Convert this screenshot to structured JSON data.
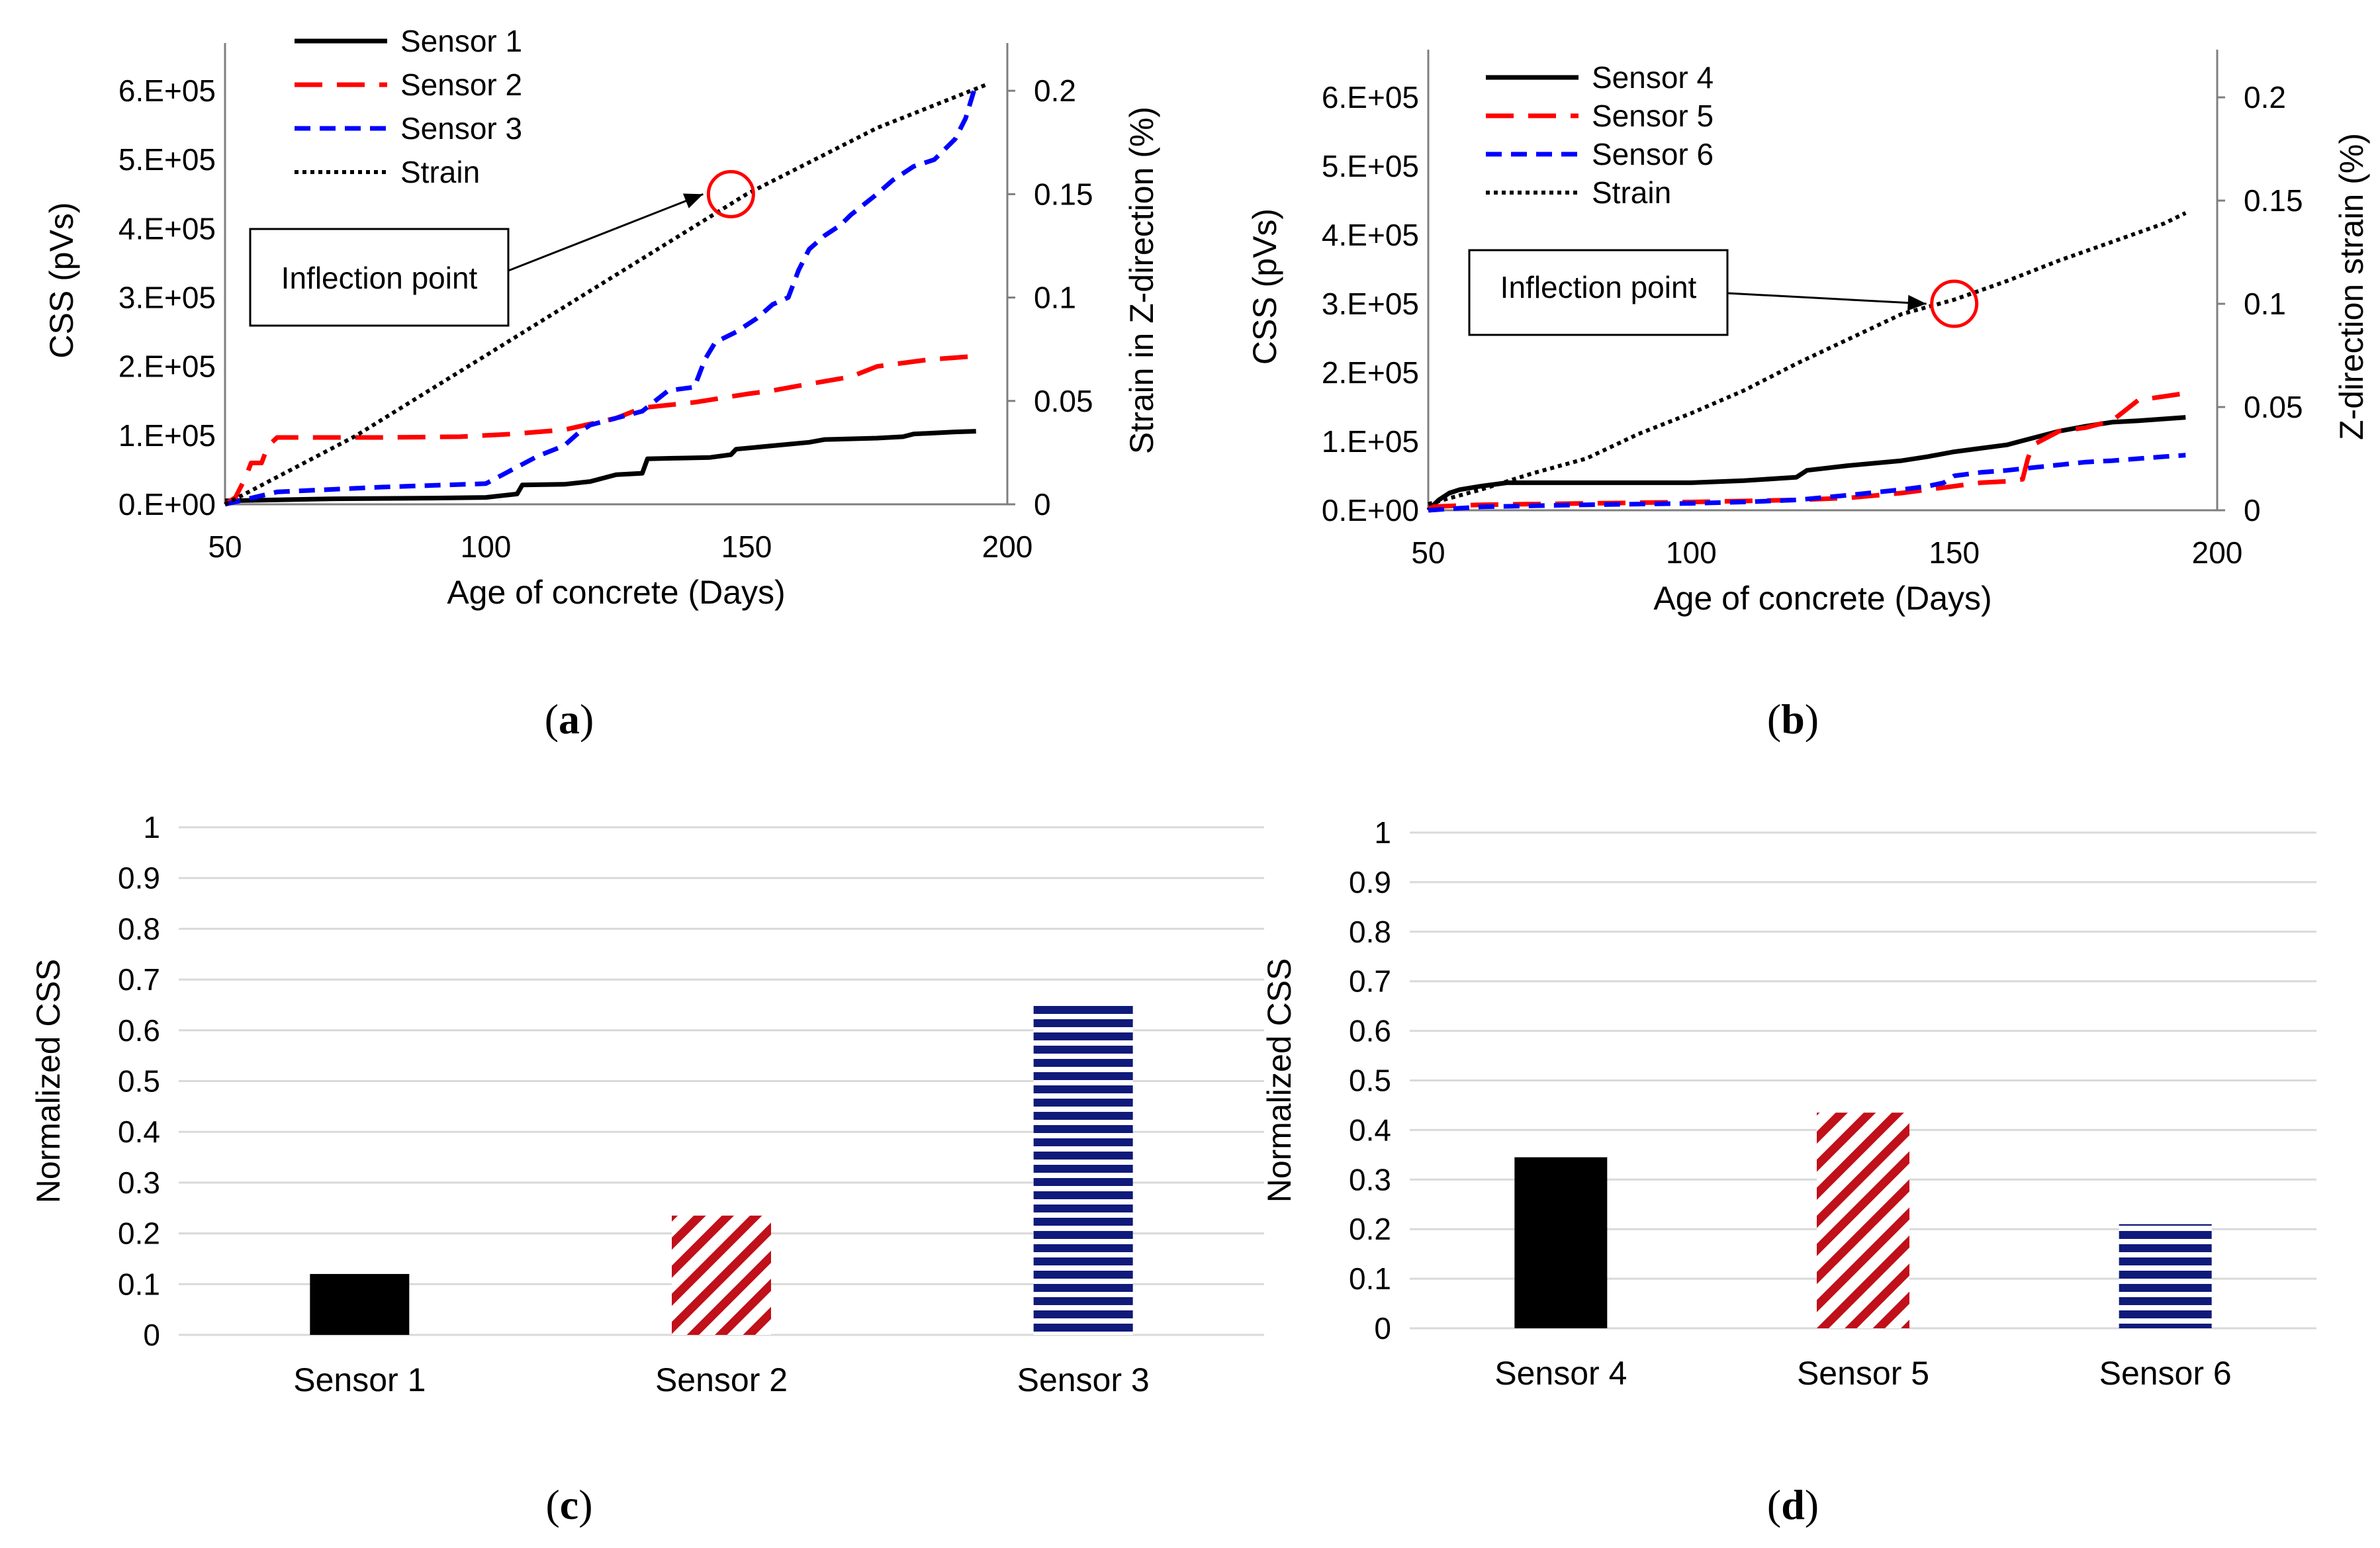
{
  "colors": {
    "sensor_solid": "#000000",
    "sensor_red": "#ff0000",
    "sensor_blue": "#0000ff",
    "strain": "#000000",
    "grid": "#d9d9d9",
    "axis": "#7f7f7f",
    "bar_black": "#000000",
    "bar_red": "#c0101a",
    "bar_navy": "#0f1a7a"
  },
  "chart_data": [
    {
      "id": "a",
      "type": "line",
      "panel_label": "a",
      "xlabel": "Age of concrete (Days)",
      "ylabel": "CSS (pVs)",
      "y2label": "Strain in Z-direction (%)",
      "xlim": [
        50,
        200
      ],
      "ylim": [
        0,
        650000
      ],
      "y2lim": [
        0,
        0.2167
      ],
      "x_ticks": [
        "50",
        "100",
        "150",
        "200"
      ],
      "y_ticks": [
        "0.E+00",
        "1.E+05",
        "2.E+05",
        "3.E+05",
        "4.E+05",
        "5.E+05",
        "6.E+05"
      ],
      "y2_ticks": [
        "0",
        "0.05",
        "0.1",
        "0.15",
        "0.2"
      ],
      "legend_position": "top-left",
      "series": [
        {
          "name": "Sensor 1",
          "style": "solid",
          "axis": "left",
          "x": [
            50,
            70,
            90,
            100,
            106,
            107,
            115,
            120,
            125,
            130,
            131,
            137,
            143,
            147,
            148,
            155,
            162,
            165,
            175,
            180,
            182,
            190,
            194
          ],
          "y": [
            5000,
            8000,
            9000,
            10000,
            15000,
            28000,
            29000,
            33000,
            43000,
            45000,
            66000,
            67000,
            68000,
            72000,
            80000,
            85000,
            90000,
            94000,
            96000,
            98000,
            102000,
            105000,
            106000
          ]
        },
        {
          "name": "Sensor 2",
          "style": "dashed",
          "axis": "left",
          "x": [
            50,
            52,
            54,
            55,
            57,
            58,
            59,
            60,
            65,
            80,
            95,
            105,
            115,
            125,
            130,
            140,
            150,
            155,
            160,
            170,
            175,
            185,
            194
          ],
          "y": [
            0,
            10000,
            40000,
            60000,
            60000,
            80000,
            90000,
            97000,
            97000,
            97000,
            98000,
            102000,
            108000,
            125000,
            140000,
            148000,
            160000,
            165000,
            172000,
            185000,
            200000,
            210000,
            215000
          ]
        },
        {
          "name": "Sensor 3",
          "style": "dotted-dash",
          "axis": "left",
          "x": [
            50,
            60,
            80,
            100,
            105,
            110,
            115,
            118,
            120,
            125,
            130,
            135,
            140,
            142,
            144,
            148,
            152,
            155,
            158,
            160,
            162,
            165,
            168,
            170,
            175,
            178,
            182,
            186,
            190,
            192,
            194
          ],
          "y": [
            0,
            18000,
            25000,
            30000,
            50000,
            70000,
            85000,
            105000,
            115000,
            125000,
            135000,
            165000,
            170000,
            210000,
            235000,
            250000,
            270000,
            290000,
            300000,
            340000,
            370000,
            390000,
            405000,
            420000,
            450000,
            470000,
            490000,
            500000,
            530000,
            560000,
            610000
          ]
        },
        {
          "name": "Strain",
          "style": "dotted",
          "axis": "right",
          "x": [
            50,
            75,
            100,
            125,
            150,
            175,
            196
          ],
          "y": [
            0,
            0.033,
            0.072,
            0.111,
            0.15,
            0.182,
            0.203
          ]
        }
      ],
      "annotations": [
        {
          "text": "Inflection point",
          "x": 147,
          "y2": 0.15
        }
      ]
    },
    {
      "id": "b",
      "type": "line",
      "panel_label": "b",
      "xlabel": "Age of concrete (Days)",
      "ylabel": "CSS (pVs)",
      "y2label": "Z-direction strain (%)",
      "xlim": [
        50,
        200
      ],
      "ylim": [
        0,
        650000
      ],
      "y2lim": [
        0,
        0.2167
      ],
      "x_ticks": [
        "50",
        "100",
        "150",
        "200"
      ],
      "y_ticks": [
        "0.E+00",
        "1.E+05",
        "2.E+05",
        "3.E+05",
        "4.E+05",
        "5.E+05",
        "6.E+05"
      ],
      "y2_ticks": [
        "0",
        "0.05",
        "0.1",
        "0.15",
        "0.2"
      ],
      "legend_position": "top-left",
      "series": [
        {
          "name": "Sensor 4",
          "style": "solid",
          "axis": "left",
          "x": [
            50,
            52,
            54,
            56,
            60,
            65,
            80,
            100,
            110,
            120,
            122,
            130,
            140,
            145,
            150,
            155,
            160,
            165,
            170,
            175,
            180,
            185,
            194
          ],
          "y": [
            0,
            15000,
            25000,
            30000,
            35000,
            40000,
            40000,
            40000,
            43000,
            48000,
            58000,
            65000,
            72000,
            78000,
            85000,
            90000,
            95000,
            105000,
            115000,
            122000,
            128000,
            130000,
            135000
          ]
        },
        {
          "name": "Sensor 5",
          "style": "dashed",
          "axis": "left",
          "x": [
            50,
            60,
            80,
            100,
            120,
            130,
            140,
            145,
            150,
            155,
            160,
            163,
            164,
            165,
            170,
            175,
            180,
            185,
            194
          ],
          "y": [
            5000,
            8000,
            10000,
            12000,
            15000,
            18000,
            25000,
            30000,
            35000,
            40000,
            42000,
            45000,
            75000,
            95000,
            115000,
            120000,
            130000,
            160000,
            170000
          ]
        },
        {
          "name": "Sensor 6",
          "style": "dotted-dash",
          "axis": "left",
          "x": [
            50,
            60,
            80,
            100,
            110,
            120,
            130,
            140,
            145,
            148,
            150,
            155,
            160,
            165,
            170,
            175,
            180,
            185,
            190,
            194
          ],
          "y": [
            0,
            5000,
            8000,
            10000,
            12000,
            15000,
            22000,
            30000,
            35000,
            40000,
            50000,
            55000,
            58000,
            62000,
            66000,
            70000,
            72000,
            75000,
            78000,
            80000
          ]
        },
        {
          "name": "Strain",
          "style": "dotted",
          "axis": "right",
          "x": [
            50,
            60,
            70,
            80,
            90,
            100,
            110,
            120,
            130,
            140,
            150,
            160,
            170,
            180,
            190,
            194
          ],
          "y": [
            0.003,
            0.01,
            0.018,
            0.025,
            0.037,
            0.047,
            0.058,
            0.071,
            0.083,
            0.095,
            0.102,
            0.111,
            0.121,
            0.13,
            0.139,
            0.144
          ]
        }
      ],
      "annotations": [
        {
          "text": "Inflection point",
          "x": 150,
          "y2": 0.1
        }
      ]
    },
    {
      "id": "c",
      "type": "bar",
      "panel_label": "c",
      "categories": [
        "Sensor 1",
        "Sensor 2",
        "Sensor 3"
      ],
      "values": [
        0.12,
        0.235,
        0.65
      ],
      "patterns": [
        "solid",
        "diagonal",
        "horizontal"
      ],
      "ylabel": "Normalized CSS",
      "ylim": [
        0,
        1
      ],
      "y_ticks": [
        "0",
        "0.1",
        "0.2",
        "0.3",
        "0.4",
        "0.5",
        "0.6",
        "0.7",
        "0.8",
        "0.9",
        "1"
      ],
      "grid": true
    },
    {
      "id": "d",
      "type": "bar",
      "panel_label": "d",
      "categories": [
        "Sensor 4",
        "Sensor 5",
        "Sensor 6"
      ],
      "values": [
        0.345,
        0.435,
        0.21
      ],
      "patterns": [
        "solid",
        "diagonal",
        "horizontal"
      ],
      "ylabel": "Normalized CSS",
      "ylim": [
        0,
        1
      ],
      "y_ticks": [
        "0",
        "0.1",
        "0.2",
        "0.3",
        "0.4",
        "0.5",
        "0.6",
        "0.7",
        "0.8",
        "0.9",
        "1"
      ],
      "grid": true
    }
  ]
}
